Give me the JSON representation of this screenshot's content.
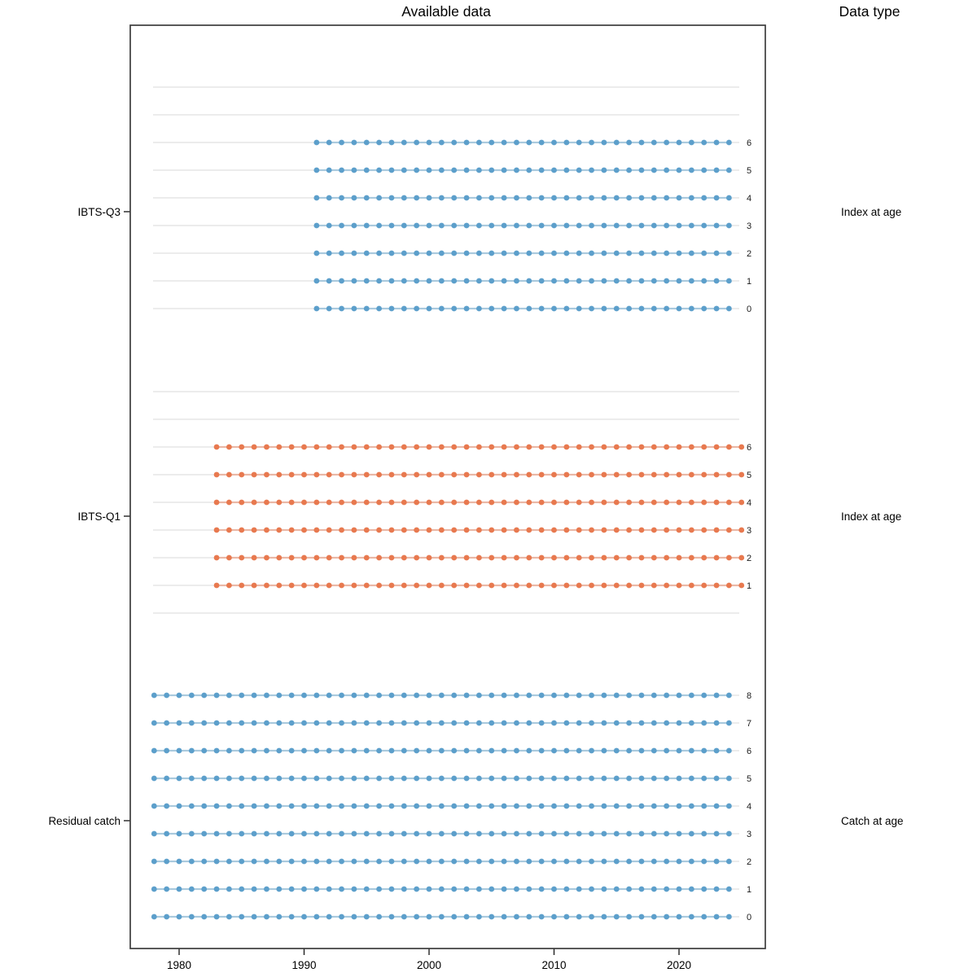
{
  "figure": {
    "title": "Available data",
    "right_column_title": "Data type"
  },
  "chart_data": {
    "type": "scatter",
    "title": "Available data",
    "right_column_title": "Data type",
    "x_ticks": [
      1980,
      1990,
      2000,
      2010,
      2020
    ],
    "x_domain_shown": [
      1978,
      2025
    ],
    "grid": true,
    "colors": {
      "index_series": "#5c9fcb",
      "catch_series": "#5c9fcb",
      "ibts_q1_series": "#e8794f",
      "gridline": "#eaeaea",
      "plot_border": "#3c3c3c"
    },
    "fleets": [
      {
        "name": "IBTS-Q3",
        "data_type": "Index at age",
        "color": "#5c9fcb",
        "slot_ages": [
          8,
          7,
          6,
          5,
          4,
          3,
          2,
          1,
          0
        ],
        "data_ages": [
          6,
          5,
          4,
          3,
          2,
          1,
          0
        ],
        "year_start": 1991,
        "year_end": 2024
      },
      {
        "name": "IBTS-Q1",
        "data_type": "Index at age",
        "color": "#e8794f",
        "slot_ages": [
          8,
          7,
          6,
          5,
          4,
          3,
          2,
          1,
          0
        ],
        "data_ages": [
          6,
          5,
          4,
          3,
          2,
          1
        ],
        "year_start": 1983,
        "year_end": 2025
      },
      {
        "name": "Residual catch",
        "data_type": "Catch at age",
        "color": "#5c9fcb",
        "slot_ages": [
          8,
          7,
          6,
          5,
          4,
          3,
          2,
          1,
          0
        ],
        "data_ages": [
          8,
          7,
          6,
          5,
          4,
          3,
          2,
          1,
          0
        ],
        "year_start": 1978,
        "year_end": 2024
      }
    ]
  }
}
